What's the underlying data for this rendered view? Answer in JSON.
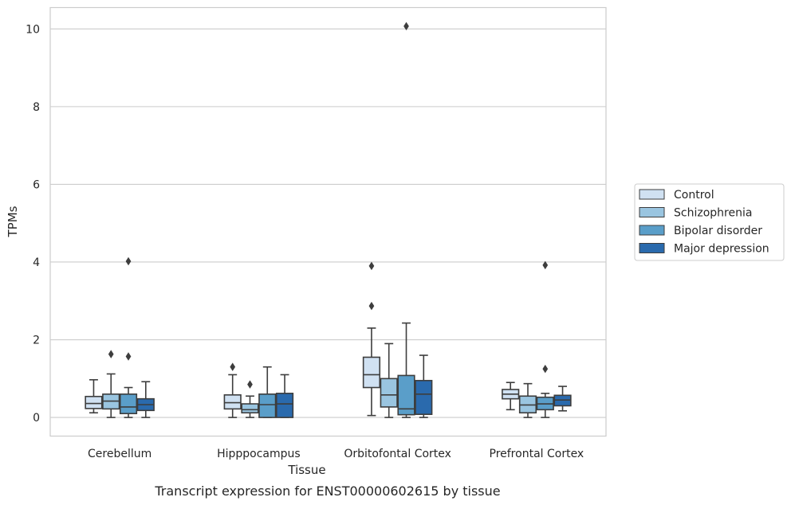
{
  "chart_data": {
    "type": "box",
    "title": "Transcript expression for ENST00000602615 by tissue",
    "xlabel": "Tissue",
    "ylabel": "TPMs",
    "ylim": [
      -0.48,
      10.55
    ],
    "yticks": [
      0,
      2,
      4,
      6,
      8,
      10
    ],
    "grid": "horizontal",
    "legend_position": "right",
    "categories": [
      "Cerebellum",
      "Hipppocampus",
      "Orbitofontal Cortex",
      "Prefrontal Cortex"
    ],
    "series": [
      {
        "name": "Control",
        "color": "#d0e1f2",
        "boxes": [
          {
            "whisker_low": 0.12,
            "q1": 0.23,
            "median": 0.36,
            "q3": 0.54,
            "whisker_high": 0.97,
            "outliers": []
          },
          {
            "whisker_low": 0.0,
            "q1": 0.22,
            "median": 0.38,
            "q3": 0.58,
            "whisker_high": 1.1,
            "outliers": [
              1.3
            ]
          },
          {
            "whisker_low": 0.05,
            "q1": 0.77,
            "median": 1.1,
            "q3": 1.55,
            "whisker_high": 2.3,
            "outliers": [
              2.87,
              3.9
            ]
          },
          {
            "whisker_low": 0.2,
            "q1": 0.48,
            "median": 0.6,
            "q3": 0.72,
            "whisker_high": 0.9,
            "outliers": []
          }
        ]
      },
      {
        "name": "Schizophrenia",
        "color": "#9ac5e0",
        "boxes": [
          {
            "whisker_low": 0.0,
            "q1": 0.22,
            "median": 0.42,
            "q3": 0.6,
            "whisker_high": 1.12,
            "outliers": [
              1.63
            ]
          },
          {
            "whisker_low": 0.0,
            "q1": 0.12,
            "median": 0.2,
            "q3": 0.35,
            "whisker_high": 0.55,
            "outliers": [
              0.85
            ]
          },
          {
            "whisker_low": 0.0,
            "q1": 0.27,
            "median": 0.58,
            "q3": 1.0,
            "whisker_high": 1.9,
            "outliers": []
          },
          {
            "whisker_low": 0.0,
            "q1": 0.12,
            "median": 0.32,
            "q3": 0.55,
            "whisker_high": 0.87,
            "outliers": []
          }
        ]
      },
      {
        "name": "Bipolar disorder",
        "color": "#5a9ec9",
        "boxes": [
          {
            "whisker_low": 0.0,
            "q1": 0.1,
            "median": 0.27,
            "q3": 0.6,
            "whisker_high": 0.77,
            "outliers": [
              1.57,
              4.02
            ]
          },
          {
            "whisker_low": 0.0,
            "q1": 0.0,
            "median": 0.33,
            "q3": 0.6,
            "whisker_high": 1.3,
            "outliers": []
          },
          {
            "whisker_low": 0.0,
            "q1": 0.07,
            "median": 0.22,
            "q3": 1.08,
            "whisker_high": 2.43,
            "outliers": [
              10.07
            ]
          },
          {
            "whisker_low": 0.0,
            "q1": 0.2,
            "median": 0.35,
            "q3": 0.52,
            "whisker_high": 0.62,
            "outliers": [
              1.25,
              3.92
            ]
          }
        ]
      },
      {
        "name": "Major depression",
        "color": "#2a6aad",
        "boxes": [
          {
            "whisker_low": 0.0,
            "q1": 0.18,
            "median": 0.33,
            "q3": 0.48,
            "whisker_high": 0.92,
            "outliers": []
          },
          {
            "whisker_low": 0.0,
            "q1": 0.0,
            "median": 0.35,
            "q3": 0.62,
            "whisker_high": 1.1,
            "outliers": []
          },
          {
            "whisker_low": 0.0,
            "q1": 0.08,
            "median": 0.6,
            "q3": 0.95,
            "whisker_high": 1.6,
            "outliers": []
          },
          {
            "whisker_low": 0.17,
            "q1": 0.3,
            "median": 0.45,
            "q3": 0.57,
            "whisker_high": 0.8,
            "outliers": []
          }
        ]
      }
    ]
  }
}
